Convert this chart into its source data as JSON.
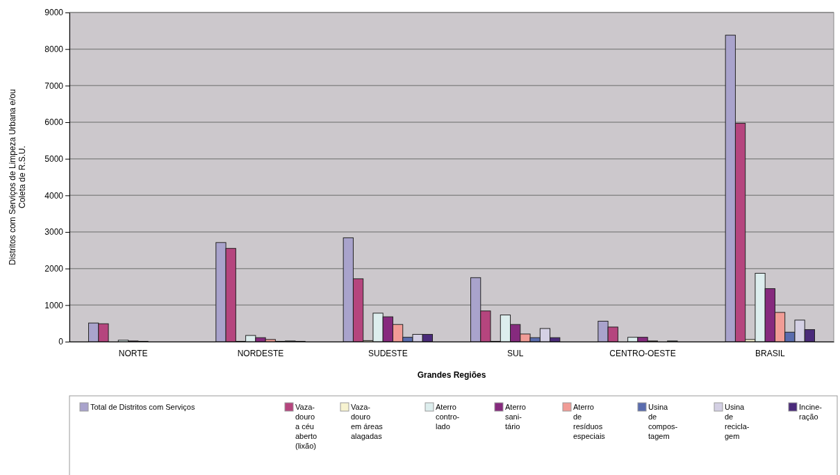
{
  "chart_data": {
    "type": "bar",
    "xlabel": "Grandes Regiões",
    "ylabel": "Distritos com Serviços de Limpeza Urbana e/ou\nColeta de R.S.U.",
    "categories": [
      "NORTE",
      "NORDESTE",
      "SUDESTE",
      "SUL",
      "CENTRO-OESTE",
      "BRASIL"
    ],
    "ylim": [
      0,
      9000
    ],
    "yticks": [
      0,
      1000,
      2000,
      3000,
      4000,
      5000,
      6000,
      7000,
      8000,
      9000
    ],
    "grid": "y",
    "legend": "bottom",
    "series": [
      {
        "name": "Total de Distritos com Serviços",
        "color": "#a9a3cc",
        "values": [
          510,
          2710,
          2840,
          1750,
          560,
          8380
        ]
      },
      {
        "name": "Vaza-\ndouro\na céu\naberto\n(lixão)",
        "color": "#b5457e",
        "values": [
          490,
          2550,
          1720,
          840,
          400,
          5970
        ]
      },
      {
        "name": "Vaza-\ndouro\nem áreas\nalagadas",
        "color": "#f7f3d0",
        "values": [
          null,
          10,
          30,
          10,
          0,
          60
        ]
      },
      {
        "name": "Aterro\ncontro-\nlado",
        "color": "#ddeeee",
        "values": [
          40,
          170,
          780,
          730,
          120,
          1870
        ]
      },
      {
        "name": "Aterro\nsani-\ntário",
        "color": "#862a7e",
        "values": [
          20,
          110,
          680,
          470,
          120,
          1450
        ]
      },
      {
        "name": "Aterro\nde\nresíduos\nespeciais",
        "color": "#f19c96",
        "values": [
          10,
          60,
          470,
          210,
          20,
          800
        ]
      },
      {
        "name": "Usina\nde\ncompos-\ntagem",
        "color": "#5a6cae",
        "values": [
          0,
          10,
          120,
          110,
          0,
          260
        ]
      },
      {
        "name": "Usina\nde\nrecicla-\ngem",
        "color": "#d4d0e4",
        "values": [
          0,
          20,
          200,
          360,
          20,
          590
        ]
      },
      {
        "name": "Incine-\nração",
        "color": "#4a2a7a",
        "values": [
          0,
          10,
          200,
          110,
          0,
          330
        ]
      }
    ]
  }
}
